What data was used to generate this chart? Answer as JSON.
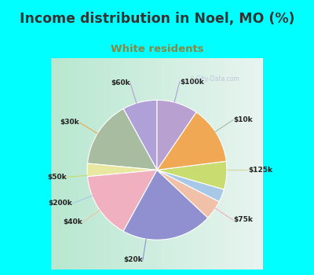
{
  "title": "Income distribution in Noel, MO (%)",
  "subtitle": "White residents",
  "title_color": "#333333",
  "subtitle_color": "#888844",
  "bg_top_color": "#00ffff",
  "chart_bg_left": "#b8e8d8",
  "chart_bg_right": "#e8f4f0",
  "labels": [
    "$100k",
    "$10k",
    "$125k",
    "$75k",
    "$20k",
    "$40k",
    "$200k",
    "$50k",
    "$30k",
    "$60k"
  ],
  "sizes": [
    8.0,
    15.5,
    3.0,
    15.5,
    21.0,
    4.5,
    3.0,
    6.5,
    13.5,
    9.5
  ],
  "colors": [
    "#b0a0d8",
    "#a8bca0",
    "#e8e8a0",
    "#f0b0c0",
    "#9090d0",
    "#f0c0a8",
    "#a8c8e8",
    "#c8dc70",
    "#f0a855",
    "#b8a0d0"
  ],
  "start_angle": 90,
  "line_color_map": {
    "$100k": "#b0a0d8",
    "$10k": "#a8bca0",
    "$125k": "#d8d890",
    "$75k": "#f0b0c0",
    "$20k": "#9090d0",
    "$40k": "#f0c0a8",
    "$200k": "#a8c8e8",
    "$50k": "#c8dc70",
    "$30k": "#f0a855",
    "$60k": "#b8a0d0"
  }
}
